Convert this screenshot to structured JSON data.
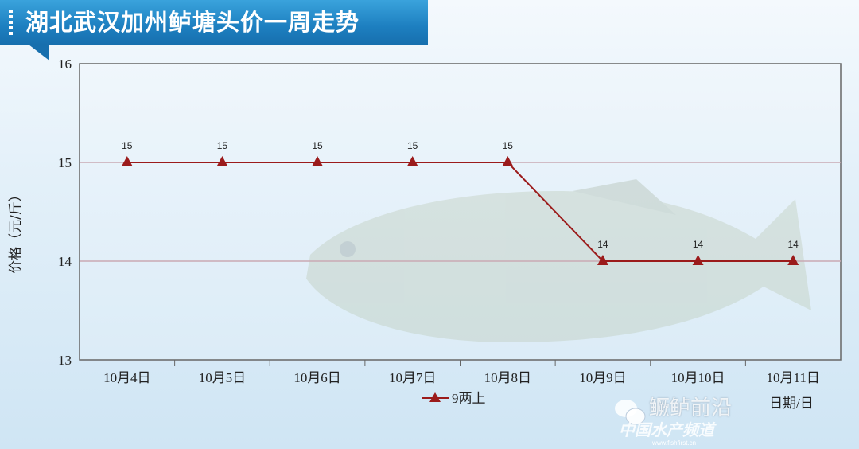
{
  "title": "湖北武汉加州鲈塘头价一周走势",
  "watermark": {
    "line1": "鳜鲈前沿",
    "line2": "中国水产频道",
    "line3": "www.fishfirst.cn"
  },
  "colors": {
    "series": "#9b1b1b",
    "title_bar": "#1d7fc0",
    "grid": "#c9a9b3"
  },
  "chart_data": {
    "type": "line",
    "title": "湖北武汉加州鲈塘头价一周走势",
    "xlabel": "日期/日",
    "ylabel": "价格（元/斤）",
    "ylim": [
      13,
      16
    ],
    "yticks": [
      13,
      14,
      15,
      16
    ],
    "grid": true,
    "legend_placement": "bottom",
    "categories": [
      "10月4日",
      "10月5日",
      "10月6日",
      "10月7日",
      "10月8日",
      "10月9日",
      "10月10日",
      "10月11日"
    ],
    "series": [
      {
        "name": "9两上",
        "marker": "triangle",
        "values": [
          15,
          15,
          15,
          15,
          15,
          14,
          14,
          14
        ]
      }
    ]
  }
}
